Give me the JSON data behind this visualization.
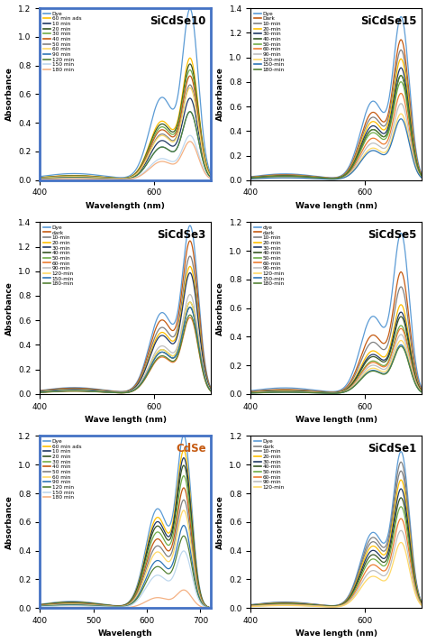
{
  "panels": [
    {
      "title": "SiCdSe10",
      "title_color": "black",
      "xlabel": "Wavelength (nm)",
      "ylabel": "Absorbance",
      "xlim": [
        400,
        700
      ],
      "ylim": [
        0,
        1.2
      ],
      "yticks": [
        0,
        0.2,
        0.4,
        0.6,
        0.8,
        1.0,
        1.2
      ],
      "xticks": [
        400,
        600
      ],
      "border_color": "#4472C4",
      "border_width": 2.0,
      "legend_labels": [
        "Dye",
        "60 min ads",
        "10 min",
        "20 min",
        "30 min",
        "40 min",
        "50 min",
        "60 min",
        "90 min",
        "120 min",
        "150 min",
        "180 min"
      ],
      "line_colors": [
        "#5B9BD5",
        "#FFC000",
        "#203864",
        "#375623",
        "#70AD47",
        "#C55A11",
        "#808080",
        "#FFD966",
        "#2E75B6",
        "#548235",
        "#BDD7EE",
        "#F4B183"
      ],
      "peak_wavelength": 664,
      "peak_heights": [
        1.15,
        0.82,
        0.55,
        0.78,
        0.74,
        0.7,
        0.64,
        0.62,
        0.46,
        0.46,
        0.3,
        0.26
      ],
      "shoulder_wavelength": 614,
      "shoulder_ratio": 0.5,
      "bg_ratio": 0.04,
      "sigma_main": 14,
      "sigma_shoulder": 22
    },
    {
      "title": "SiCdSe15",
      "title_color": "black",
      "xlabel": "Wave length (nm)",
      "ylabel": "Absorbance",
      "xlim": [
        400,
        700
      ],
      "ylim": [
        0,
        1.4
      ],
      "yticks": [
        0,
        0.2,
        0.4,
        0.6,
        0.8,
        1.0,
        1.2,
        1.4
      ],
      "xticks": [
        400,
        600
      ],
      "border_color": "black",
      "border_width": 0.8,
      "legend_labels": [
        "Dye",
        "Dark",
        "10-min",
        "20-min",
        "30-min",
        "40-min",
        "50-min",
        "60-min",
        "90-min",
        "120-min",
        "150-min",
        "180-min"
      ],
      "line_colors": [
        "#5B9BD5",
        "#C55A11",
        "#808080",
        "#FFC000",
        "#203864",
        "#375623",
        "#70AD47",
        "#ED7D31",
        "#BFBFBF",
        "#FFD966",
        "#2E75B6",
        "#548235"
      ],
      "peak_wavelength": 664,
      "peak_heights": [
        1.28,
        1.1,
        1.02,
        0.95,
        0.88,
        0.82,
        0.77,
        0.68,
        0.6,
        0.52,
        0.48,
        0.82
      ],
      "shoulder_wavelength": 614,
      "shoulder_ratio": 0.5,
      "bg_ratio": 0.04,
      "sigma_main": 14,
      "sigma_shoulder": 22
    },
    {
      "title": "SiCdSe3",
      "title_color": "black",
      "xlabel": "Wave length (nm)",
      "ylabel": "Absorbance",
      "xlim": [
        400,
        700
      ],
      "ylim": [
        0,
        1.4
      ],
      "yticks": [
        0,
        0.2,
        0.4,
        0.6,
        0.8,
        1.0,
        1.2,
        1.4
      ],
      "xticks": [
        400,
        600
      ],
      "border_color": "black",
      "border_width": 0.8,
      "legend_labels": [
        "Dye",
        "dark",
        "10-min",
        "20-min",
        "30-min",
        "40-min",
        "50-min",
        "60-min",
        "90-min",
        "120-min",
        "150-min",
        "180-min"
      ],
      "line_colors": [
        "#5B9BD5",
        "#C55A11",
        "#808080",
        "#FFC000",
        "#203864",
        "#375623",
        "#70AD47",
        "#ED7D31",
        "#BFBFBF",
        "#FFD966",
        "#2E75B6",
        "#548235"
      ],
      "peak_wavelength": 664,
      "peak_heights": [
        1.32,
        1.2,
        1.08,
        1.0,
        0.95,
        0.68,
        0.72,
        0.6,
        0.78,
        0.72,
        0.68,
        0.62
      ],
      "shoulder_wavelength": 614,
      "shoulder_ratio": 0.5,
      "bg_ratio": 0.04,
      "sigma_main": 14,
      "sigma_shoulder": 22
    },
    {
      "title": "SiCdSe5",
      "title_color": "black",
      "xlabel": "Wave length (nm)",
      "ylabel": "Absorbance",
      "xlim": [
        400,
        700
      ],
      "ylim": [
        0,
        1.2
      ],
      "yticks": [
        0,
        0.2,
        0.4,
        0.6,
        0.8,
        1.0,
        1.2
      ],
      "xticks": [
        400,
        600
      ],
      "border_color": "black",
      "border_width": 0.8,
      "legend_labels": [
        "dye",
        "dark",
        "10-min",
        "20-min",
        "30-min",
        "40-min",
        "50-min",
        "60-min",
        "90-min",
        "120-min",
        "150-min",
        "180-min"
      ],
      "line_colors": [
        "#5B9BD5",
        "#C55A11",
        "#808080",
        "#FFC000",
        "#203864",
        "#375623",
        "#70AD47",
        "#ED7D31",
        "#BFBFBF",
        "#FFD966",
        "#2E75B6",
        "#548235"
      ],
      "peak_wavelength": 664,
      "peak_heights": [
        1.08,
        0.82,
        0.72,
        0.6,
        0.55,
        0.52,
        0.46,
        0.44,
        0.4,
        0.36,
        0.33,
        0.32
      ],
      "shoulder_wavelength": 614,
      "shoulder_ratio": 0.5,
      "bg_ratio": 0.04,
      "sigma_main": 14,
      "sigma_shoulder": 22
    },
    {
      "title": "CdSe",
      "title_color": "#C55A11",
      "xlabel": "Wavelength",
      "ylabel": "Absorbance",
      "xlim": [
        400,
        720
      ],
      "ylim": [
        0,
        1.2
      ],
      "yticks": [
        0,
        0.2,
        0.4,
        0.6,
        0.8,
        1.0,
        1.2
      ],
      "xticks": [
        400,
        500,
        600,
        700
      ],
      "border_color": "#4472C4",
      "border_width": 2.0,
      "legend_labels": [
        "Dye",
        "60 min ads",
        "10 min",
        "20 min",
        "30 min",
        "40 min",
        "50 min",
        "60 min",
        "90 min",
        "120 min",
        "150 min",
        "180 min"
      ],
      "line_colors": [
        "#5B9BD5",
        "#FFC000",
        "#203864",
        "#375623",
        "#70AD47",
        "#C55A11",
        "#808080",
        "#FFD966",
        "#2E75B6",
        "#548235",
        "#BDD7EE",
        "#F4B183"
      ],
      "peak_wavelength": 670,
      "peak_heights": [
        1.15,
        1.05,
        1.0,
        0.95,
        0.88,
        0.8,
        0.72,
        0.65,
        0.55,
        0.48,
        0.38,
        0.12
      ],
      "shoulder_wavelength": 620,
      "shoulder_ratio": 0.6,
      "bg_ratio": 0.04,
      "sigma_main": 14,
      "sigma_shoulder": 22
    },
    {
      "title": "SiCdSe1",
      "title_color": "black",
      "xlabel": "Wave length (nm)",
      "ylabel": "Absorbance",
      "xlim": [
        400,
        700
      ],
      "ylim": [
        0,
        1.2
      ],
      "yticks": [
        0,
        0.2,
        0.4,
        0.6,
        0.8,
        1.0,
        1.2
      ],
      "xticks": [
        400,
        600
      ],
      "border_color": "black",
      "border_width": 0.8,
      "legend_labels": [
        "Dye",
        "dark",
        "10-min",
        "20-min",
        "30-min",
        "40-min",
        "50-min",
        "60-min",
        "90-min",
        "120-min"
      ],
      "line_colors": [
        "#5B9BD5",
        "#808080",
        "#7F7F7F",
        "#FFC000",
        "#203864",
        "#375623",
        "#70AD47",
        "#ED7D31",
        "#BFBFBF",
        "#FFD966"
      ],
      "peak_wavelength": 664,
      "peak_heights": [
        1.05,
        0.98,
        0.92,
        0.86,
        0.8,
        0.74,
        0.68,
        0.6,
        0.52,
        0.44
      ],
      "shoulder_wavelength": 614,
      "shoulder_ratio": 0.5,
      "bg_ratio": 0.04,
      "sigma_main": 14,
      "sigma_shoulder": 22
    }
  ]
}
